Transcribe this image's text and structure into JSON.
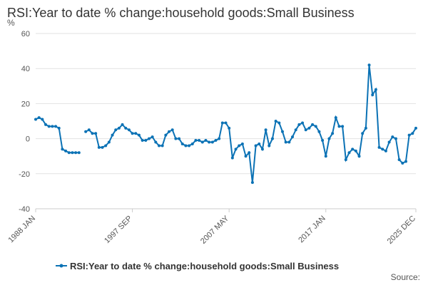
{
  "chart_data": {
    "type": "line",
    "title": "RSI:Year to date % change:household goods:Small Business",
    "y_label": "%",
    "source": "Source:",
    "categories": [
      "1988 JAN",
      null,
      null,
      null,
      null,
      null,
      null,
      null,
      null,
      null,
      null,
      null,
      null,
      null,
      null,
      null,
      null,
      null,
      null,
      null,
      null,
      null,
      null,
      null,
      null,
      null,
      null,
      null,
      null,
      "1997 SEP",
      null,
      null,
      null,
      null,
      null,
      null,
      null,
      null,
      null,
      null,
      null,
      null,
      null,
      null,
      null,
      null,
      null,
      null,
      null,
      null,
      null,
      null,
      null,
      null,
      null,
      null,
      null,
      null,
      "2007 MAY",
      null,
      null,
      null,
      null,
      null,
      null,
      null,
      null,
      null,
      null,
      null,
      null,
      null,
      null,
      null,
      null,
      null,
      null,
      null,
      null,
      null,
      null,
      null,
      null,
      null,
      null,
      null,
      null,
      "2017 JAN",
      null,
      null,
      null,
      null,
      null,
      null,
      null,
      null,
      null,
      null,
      null,
      null,
      null,
      null,
      null,
      null,
      null,
      null,
      null,
      null,
      null,
      null,
      null,
      null,
      null,
      null,
      "2025 DEC"
    ],
    "series": [
      {
        "name": "RSI:Year to date % change:household goods:Small Business",
        "color": "#0b72b5",
        "values": [
          11,
          12,
          11,
          8,
          7,
          7,
          7,
          6,
          -6,
          -7,
          -8,
          -8,
          -8,
          -8,
          null,
          4,
          5,
          3,
          3,
          -5,
          -5,
          -4,
          -2,
          2,
          5,
          6,
          8,
          6,
          5,
          3,
          3,
          2,
          -1,
          -1,
          0,
          1,
          -2,
          -4,
          -4,
          2,
          4,
          5,
          0,
          0,
          -3,
          -4,
          -4,
          -3,
          -1,
          -1,
          -2,
          -1,
          -2,
          -2,
          -1,
          0,
          9,
          9,
          6,
          -11,
          -6,
          -4,
          -3,
          -10,
          -8,
          -25,
          -4,
          -3,
          -6,
          5,
          -4,
          0,
          10,
          9,
          4,
          -2,
          -2,
          1,
          5,
          8,
          9,
          5,
          6,
          8,
          7,
          4,
          -1,
          -10,
          0,
          3,
          12,
          7,
          7,
          -12,
          -8,
          -6,
          -7,
          -10,
          3,
          6,
          42,
          25,
          28,
          -5,
          -6,
          -7,
          -2,
          1,
          0,
          -12,
          -14,
          -13,
          2,
          3,
          6
        ]
      }
    ],
    "ylim": [
      -40,
      60
    ],
    "yticks": [
      -40,
      -20,
      0,
      20,
      40,
      60
    ],
    "grid": true
  }
}
